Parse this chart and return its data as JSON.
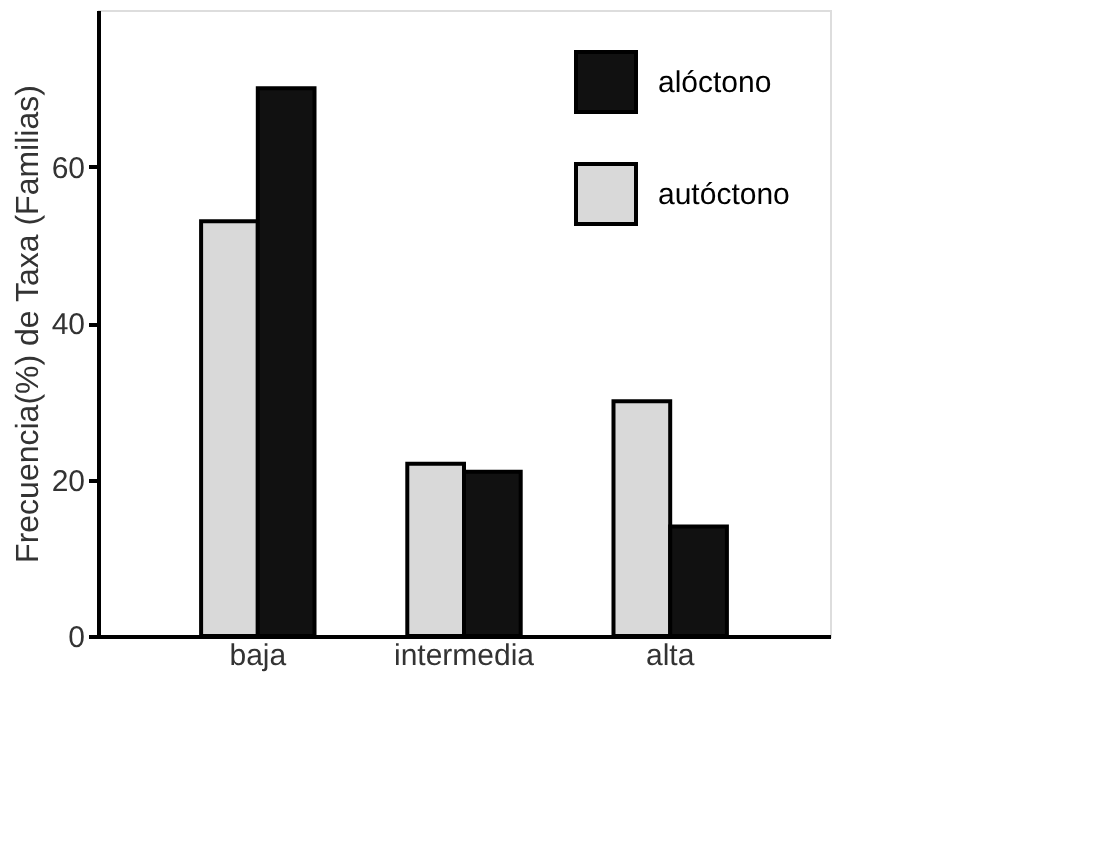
{
  "chart_data": {
    "type": "bar",
    "ylabel": "Frecuencia(%) de Taxa (Familias)",
    "categories": [
      "baja",
      "intermedia",
      "alta"
    ],
    "series": [
      {
        "name": "autóctono",
        "color": "#d9d9d9",
        "values": [
          53,
          22,
          30
        ]
      },
      {
        "name": "alóctono",
        "color": "#111111",
        "values": [
          70,
          21,
          14
        ]
      }
    ],
    "ylim": [
      0,
      80
    ],
    "yticks": [
      0,
      20,
      40,
      60
    ],
    "grid": false,
    "legend": "top right"
  }
}
